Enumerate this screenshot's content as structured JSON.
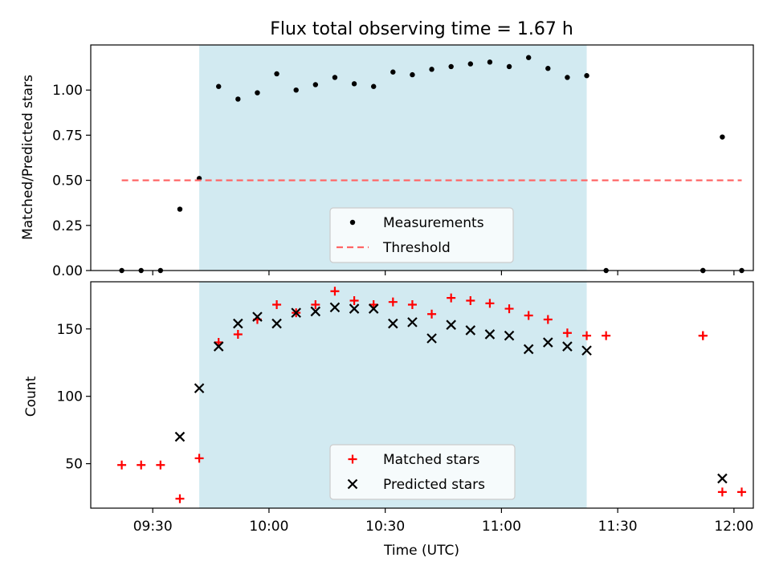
{
  "chart_data": [
    {
      "type": "scatter",
      "title": "Flux total observing time = 1.67 h",
      "xlabel": "",
      "ylabel": "Matched/Predicted stars",
      "xlim": [
        "09:14",
        "12:05"
      ],
      "ylim": [
        0,
        1.25
      ],
      "yticks": [
        "0.00",
        "0.25",
        "0.50",
        "0.75",
        "1.00"
      ],
      "grid": false,
      "legend_position": "bottom-center",
      "shaded_interval": [
        "09:42",
        "11:22"
      ],
      "shaded_color": "#add8e6",
      "series": [
        {
          "name": "Measurements",
          "marker": "dot",
          "color": "#000000",
          "points": [
            [
              "09:22",
              0.0
            ],
            [
              "09:27",
              0.0
            ],
            [
              "09:32",
              0.0
            ],
            [
              "09:37",
              0.34
            ],
            [
              "09:42",
              0.51
            ],
            [
              "09:47",
              1.02
            ],
            [
              "09:52",
              0.95
            ],
            [
              "09:57",
              0.985
            ],
            [
              "10:02",
              1.09
            ],
            [
              "10:07",
              1.0
            ],
            [
              "10:12",
              1.03
            ],
            [
              "10:17",
              1.07
            ],
            [
              "10:22",
              1.035
            ],
            [
              "10:27",
              1.02
            ],
            [
              "10:32",
              1.1
            ],
            [
              "10:37",
              1.085
            ],
            [
              "10:42",
              1.115
            ],
            [
              "10:47",
              1.13
            ],
            [
              "10:52",
              1.145
            ],
            [
              "10:57",
              1.155
            ],
            [
              "11:02",
              1.13
            ],
            [
              "11:07",
              1.18
            ],
            [
              "11:12",
              1.12
            ],
            [
              "11:17",
              1.07
            ],
            [
              "11:22",
              1.08
            ],
            [
              "11:27",
              0.0
            ],
            [
              "11:52",
              0.0
            ],
            [
              "11:52",
              0.0
            ],
            [
              "11:57",
              0.74
            ],
            [
              "12:02",
              0.0
            ]
          ]
        },
        {
          "name": "Threshold",
          "style": "dashed-line",
          "color": "#ff6666",
          "points": [
            [
              "09:22",
              0.5
            ],
            [
              "12:02",
              0.5
            ]
          ]
        }
      ]
    },
    {
      "type": "scatter",
      "title": "",
      "xlabel": "Time (UTC)",
      "ylabel": "Count",
      "xlim": [
        "09:14",
        "12:05"
      ],
      "ylim": [
        17,
        185
      ],
      "xticks": [
        "09:30",
        "10:00",
        "10:30",
        "11:00",
        "11:30",
        "12:00"
      ],
      "yticks": [
        "50",
        "100",
        "150"
      ],
      "grid": false,
      "legend_position": "bottom-center",
      "shaded_interval": [
        "09:42",
        "11:22"
      ],
      "shaded_color": "#add8e6",
      "series": [
        {
          "name": "Matched stars",
          "marker": "plus",
          "color": "#ff0000",
          "points": [
            [
              "09:22",
              49
            ],
            [
              "09:27",
              49
            ],
            [
              "09:32",
              49
            ],
            [
              "09:37",
              24
            ],
            [
              "09:42",
              54
            ],
            [
              "09:47",
              140
            ],
            [
              "09:52",
              146
            ],
            [
              "09:57",
              157
            ],
            [
              "10:02",
              168
            ],
            [
              "10:07",
              162
            ],
            [
              "10:12",
              168
            ],
            [
              "10:17",
              178
            ],
            [
              "10:22",
              171
            ],
            [
              "10:27",
              168
            ],
            [
              "10:32",
              170
            ],
            [
              "10:37",
              168
            ],
            [
              "10:42",
              161
            ],
            [
              "10:47",
              173
            ],
            [
              "10:52",
              171
            ],
            [
              "10:57",
              169
            ],
            [
              "11:02",
              165
            ],
            [
              "11:07",
              160
            ],
            [
              "11:12",
              157
            ],
            [
              "11:17",
              147
            ],
            [
              "11:22",
              145
            ],
            [
              "11:27",
              145
            ],
            [
              "11:52",
              145
            ],
            [
              "11:52",
              145
            ],
            [
              "11:57",
              29
            ],
            [
              "12:02",
              29
            ]
          ]
        },
        {
          "name": "Predicted stars",
          "marker": "x",
          "color": "#000000",
          "points": [
            [
              "09:37",
              70
            ],
            [
              "09:42",
              106
            ],
            [
              "09:47",
              137
            ],
            [
              "09:52",
              154
            ],
            [
              "09:57",
              159
            ],
            [
              "10:02",
              154
            ],
            [
              "10:07",
              162
            ],
            [
              "10:12",
              163
            ],
            [
              "10:17",
              166
            ],
            [
              "10:22",
              165
            ],
            [
              "10:27",
              165
            ],
            [
              "10:32",
              154
            ],
            [
              "10:37",
              155
            ],
            [
              "10:42",
              143
            ],
            [
              "10:47",
              153
            ],
            [
              "10:52",
              149
            ],
            [
              "10:57",
              146
            ],
            [
              "11:02",
              145
            ],
            [
              "11:07",
              135
            ],
            [
              "11:12",
              140
            ],
            [
              "11:17",
              137
            ],
            [
              "11:22",
              134
            ],
            [
              "11:57",
              39
            ]
          ]
        }
      ]
    }
  ]
}
